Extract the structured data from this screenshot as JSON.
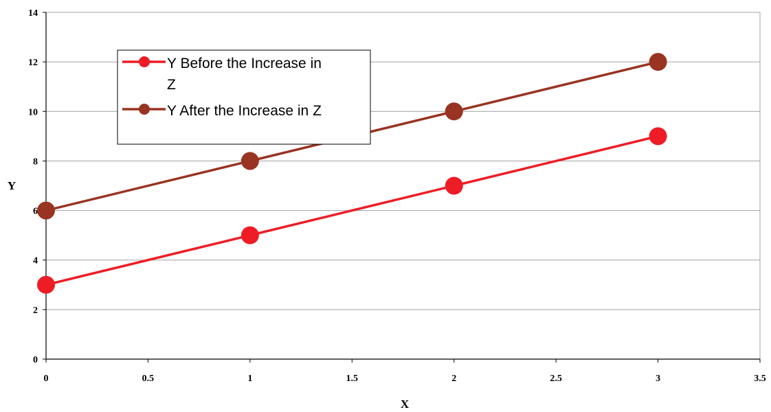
{
  "chart_data": {
    "type": "scatter",
    "xlabel": "X",
    "ylabel": "Y",
    "xlim": [
      0,
      3.5
    ],
    "ylim": [
      0,
      14
    ],
    "xticks": [
      "0",
      "0.5",
      "1",
      "1.5",
      "2",
      "2.5",
      "3",
      "3.5"
    ],
    "yticks": [
      "0",
      "2",
      "4",
      "6",
      "8",
      "10",
      "12",
      "14"
    ],
    "grid": "horizontal",
    "legend_position": "top-left",
    "series": [
      {
        "name": "Y Before the Increase in Z",
        "name_lines": [
          "Y Before the Increase in",
          "Z"
        ],
        "color": "#ee1c25",
        "x": [
          0,
          1,
          2,
          3
        ],
        "y": [
          3,
          5,
          7,
          9
        ]
      },
      {
        "name": "Y After the Increase in Z",
        "name_lines": [
          "Y After the Increase in Z"
        ],
        "color": "#993322",
        "x": [
          0,
          1,
          2,
          3
        ],
        "y": [
          6,
          8,
          10,
          12
        ]
      }
    ]
  }
}
